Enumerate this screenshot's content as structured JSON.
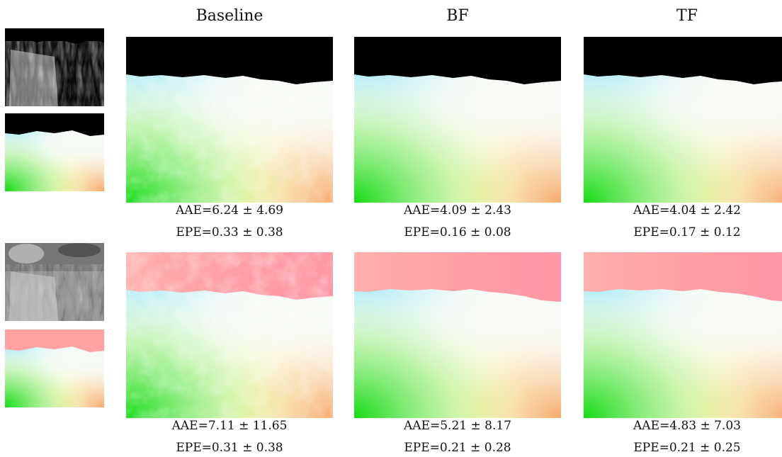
{
  "columns": [
    "Baseline",
    "BF",
    "TF"
  ],
  "rows": [
    {
      "metrics": [
        {
          "aae": "AAE=6.24 ± 4.69",
          "epe": "EPE=0.33 ± 0.38"
        },
        {
          "aae": "AAE=4.09 ± 2.43",
          "epe": "EPE=0.16 ± 0.08"
        },
        {
          "aae": "AAE=4.04 ± 2.42",
          "epe": "EPE=0.17 ± 0.12"
        }
      ]
    },
    {
      "metrics": [
        {
          "aae": "AAE=7.11 ± 11.65",
          "epe": "EPE=0.31 ± 0.38"
        },
        {
          "aae": "AAE=5.21 ± 8.17",
          "epe": "EPE=0.21 ± 0.28"
        },
        {
          "aae": "AAE=4.83 ± 7.03",
          "epe": "EPE=0.21 ± 0.25"
        }
      ]
    }
  ],
  "colors": {
    "sky_row1": "#000000",
    "sky_row2": "#ff9aa0",
    "flow_green": "#1ee01e",
    "flow_cyan": "#8fe6f8",
    "flow_yellow": "#f6f27a",
    "flow_orange": "#f8b070"
  }
}
